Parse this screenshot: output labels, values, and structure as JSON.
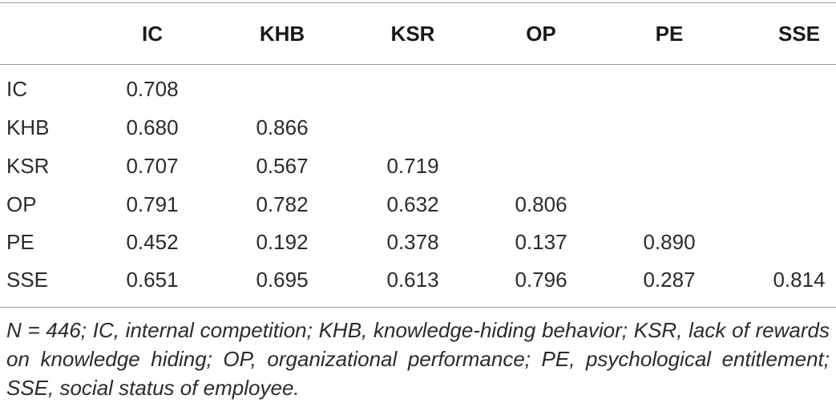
{
  "table": {
    "header": [
      "IC",
      "KHB",
      "KSR",
      "OP",
      "PE",
      "SSE"
    ],
    "rows": [
      [
        "IC",
        "0.708"
      ],
      [
        "KHB",
        "0.680",
        "0.866"
      ],
      [
        "KSR",
        "0.707",
        "0.567",
        "0.719"
      ],
      [
        "OP",
        "0.791",
        "0.782",
        "0.632",
        "0.806"
      ],
      [
        "PE",
        "0.452",
        "0.192",
        "0.378",
        "0.137",
        "0.890"
      ],
      [
        "SSE",
        "0.651",
        "0.695",
        "0.613",
        "0.796",
        "0.287",
        "0.814"
      ]
    ],
    "footnote": "N = 446; IC, internal competition; KHB, knowledge-hiding behavior; KSR, lack of rewards on knowledge hiding; OP, organizational performance; PE, psychological entitlement; SSE, social status of employee."
  }
}
